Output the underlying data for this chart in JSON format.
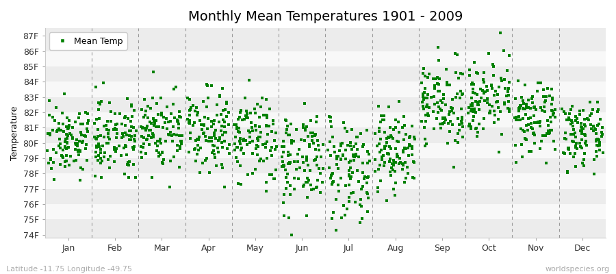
{
  "title": "Monthly Mean Temperatures 1901 - 2009",
  "ylabel": "Temperature",
  "xlabel_labels": [
    "Jan",
    "Feb",
    "Mar",
    "Apr",
    "May",
    "Jun",
    "Jul",
    "Aug",
    "Sep",
    "Oct",
    "Nov",
    "Dec"
  ],
  "ytick_labels": [
    "74F",
    "75F",
    "76F",
    "77F",
    "78F",
    "79F",
    "80F",
    "81F",
    "82F",
    "83F",
    "84F",
    "85F",
    "86F",
    "87F"
  ],
  "ytick_values": [
    74,
    75,
    76,
    77,
    78,
    79,
    80,
    81,
    82,
    83,
    84,
    85,
    86,
    87
  ],
  "ylim": [
    73.8,
    87.5
  ],
  "legend_label": "Mean Temp",
  "dot_color": "#008000",
  "stripe_colors": [
    "#ececec",
    "#f8f8f8"
  ],
  "footer_left": "Latitude -11.75 Longitude -49.75",
  "footer_right": "worldspecies.org",
  "title_fontsize": 14,
  "label_fontsize": 9,
  "tick_fontsize": 9,
  "footer_fontsize": 8,
  "num_years": 109,
  "monthly_means": [
    80.2,
    80.5,
    80.8,
    81.0,
    80.2,
    79.0,
    78.5,
    79.5,
    82.5,
    83.0,
    81.5,
    80.5
  ],
  "monthly_stds": [
    1.1,
    1.2,
    1.3,
    1.3,
    1.5,
    1.6,
    1.7,
    1.4,
    1.3,
    1.2,
    1.1,
    1.0
  ],
  "random_seed": 7
}
